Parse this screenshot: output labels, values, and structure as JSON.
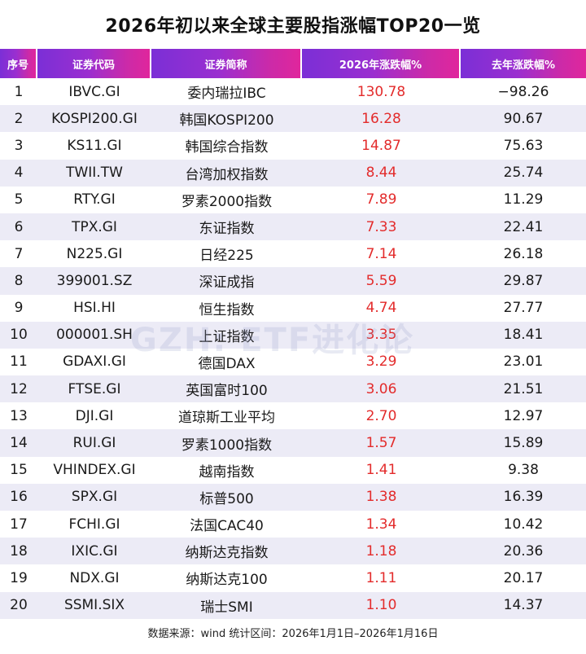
{
  "title": "2026年初以来全球主要股指涨幅TOP20一览",
  "headers": [
    "序号",
    "证券代码",
    "证券简称",
    "2026年涨跌幅%",
    "去年涨跌幅%"
  ],
  "rows": [
    {
      "rank": "1",
      "code": "IBVC.GI",
      "name": "委内瑞拉IBC",
      "ytd": "130.78",
      "last_year": "−98.26"
    },
    {
      "rank": "2",
      "code": "KOSPI200.GI",
      "name": "韩国KOSPI200",
      "ytd": "16.28",
      "last_year": "90.67"
    },
    {
      "rank": "3",
      "code": "KS11.GI",
      "name": "韩国综合指数",
      "ytd": "14.87",
      "last_year": "75.63"
    },
    {
      "rank": "4",
      "code": "TWII.TW",
      "name": "台湾加权指数",
      "ytd": "8.44",
      "last_year": "25.74"
    },
    {
      "rank": "5",
      "code": "RTY.GI",
      "name": "罗素2000指数",
      "ytd": "7.89",
      "last_year": "11.29"
    },
    {
      "rank": "6",
      "code": "TPX.GI",
      "name": "东证指数",
      "ytd": "7.33",
      "last_year": "22.41"
    },
    {
      "rank": "7",
      "code": "N225.GI",
      "name": "日经225",
      "ytd": "7.14",
      "last_year": "26.18"
    },
    {
      "rank": "8",
      "code": "399001.SZ",
      "name": "深证成指",
      "ytd": "5.59",
      "last_year": "29.87"
    },
    {
      "rank": "9",
      "code": "HSI.HI",
      "name": "恒生指数",
      "ytd": "4.74",
      "last_year": "27.77"
    },
    {
      "rank": "10",
      "code": "000001.SH",
      "name": "上证指数",
      "ytd": "3.35",
      "last_year": "18.41"
    },
    {
      "rank": "11",
      "code": "GDAXI.GI",
      "name": "德国DAX",
      "ytd": "3.29",
      "last_year": "23.01"
    },
    {
      "rank": "12",
      "code": "FTSE.GI",
      "name": "英国富时100",
      "ytd": "3.06",
      "last_year": "21.51"
    },
    {
      "rank": "13",
      "code": "DJI.GI",
      "name": "道琼斯工业平均",
      "ytd": "2.70",
      "last_year": "12.97"
    },
    {
      "rank": "14",
      "code": "RUI.GI",
      "name": "罗素1000指数",
      "ytd": "1.57",
      "last_year": "15.89"
    },
    {
      "rank": "15",
      "code": "VHINDEX.GI",
      "name": "越南指数",
      "ytd": "1.41",
      "last_year": "9.38"
    },
    {
      "rank": "16",
      "code": "SPX.GI",
      "name": "标普500",
      "ytd": "1.38",
      "last_year": "16.39"
    },
    {
      "rank": "17",
      "code": "FCHI.GI",
      "name": "法国CAC40",
      "ytd": "1.34",
      "last_year": "10.42"
    },
    {
      "rank": "18",
      "code": "IXIC.GI",
      "name": "纳斯达克指数",
      "ytd": "1.18",
      "last_year": "20.36"
    },
    {
      "rank": "19",
      "code": "NDX.GI",
      "name": "纳斯达克100",
      "ytd": "1.11",
      "last_year": "20.17"
    },
    {
      "rank": "20",
      "code": "SSMI.SIX",
      "name": "瑞士SMI",
      "ytd": "1.10",
      "last_year": "14.37"
    }
  ],
  "watermark": "GZH: ETF进化论",
  "footer": "数据来源：wind 统计区间：2026年1月1日–2026年1月16日",
  "colors": {
    "header_gradient_start": "#7b2fd6",
    "header_gradient_end": "#e0269c",
    "positive_change": "#e32b2b",
    "stripe": "#ecebf6"
  }
}
